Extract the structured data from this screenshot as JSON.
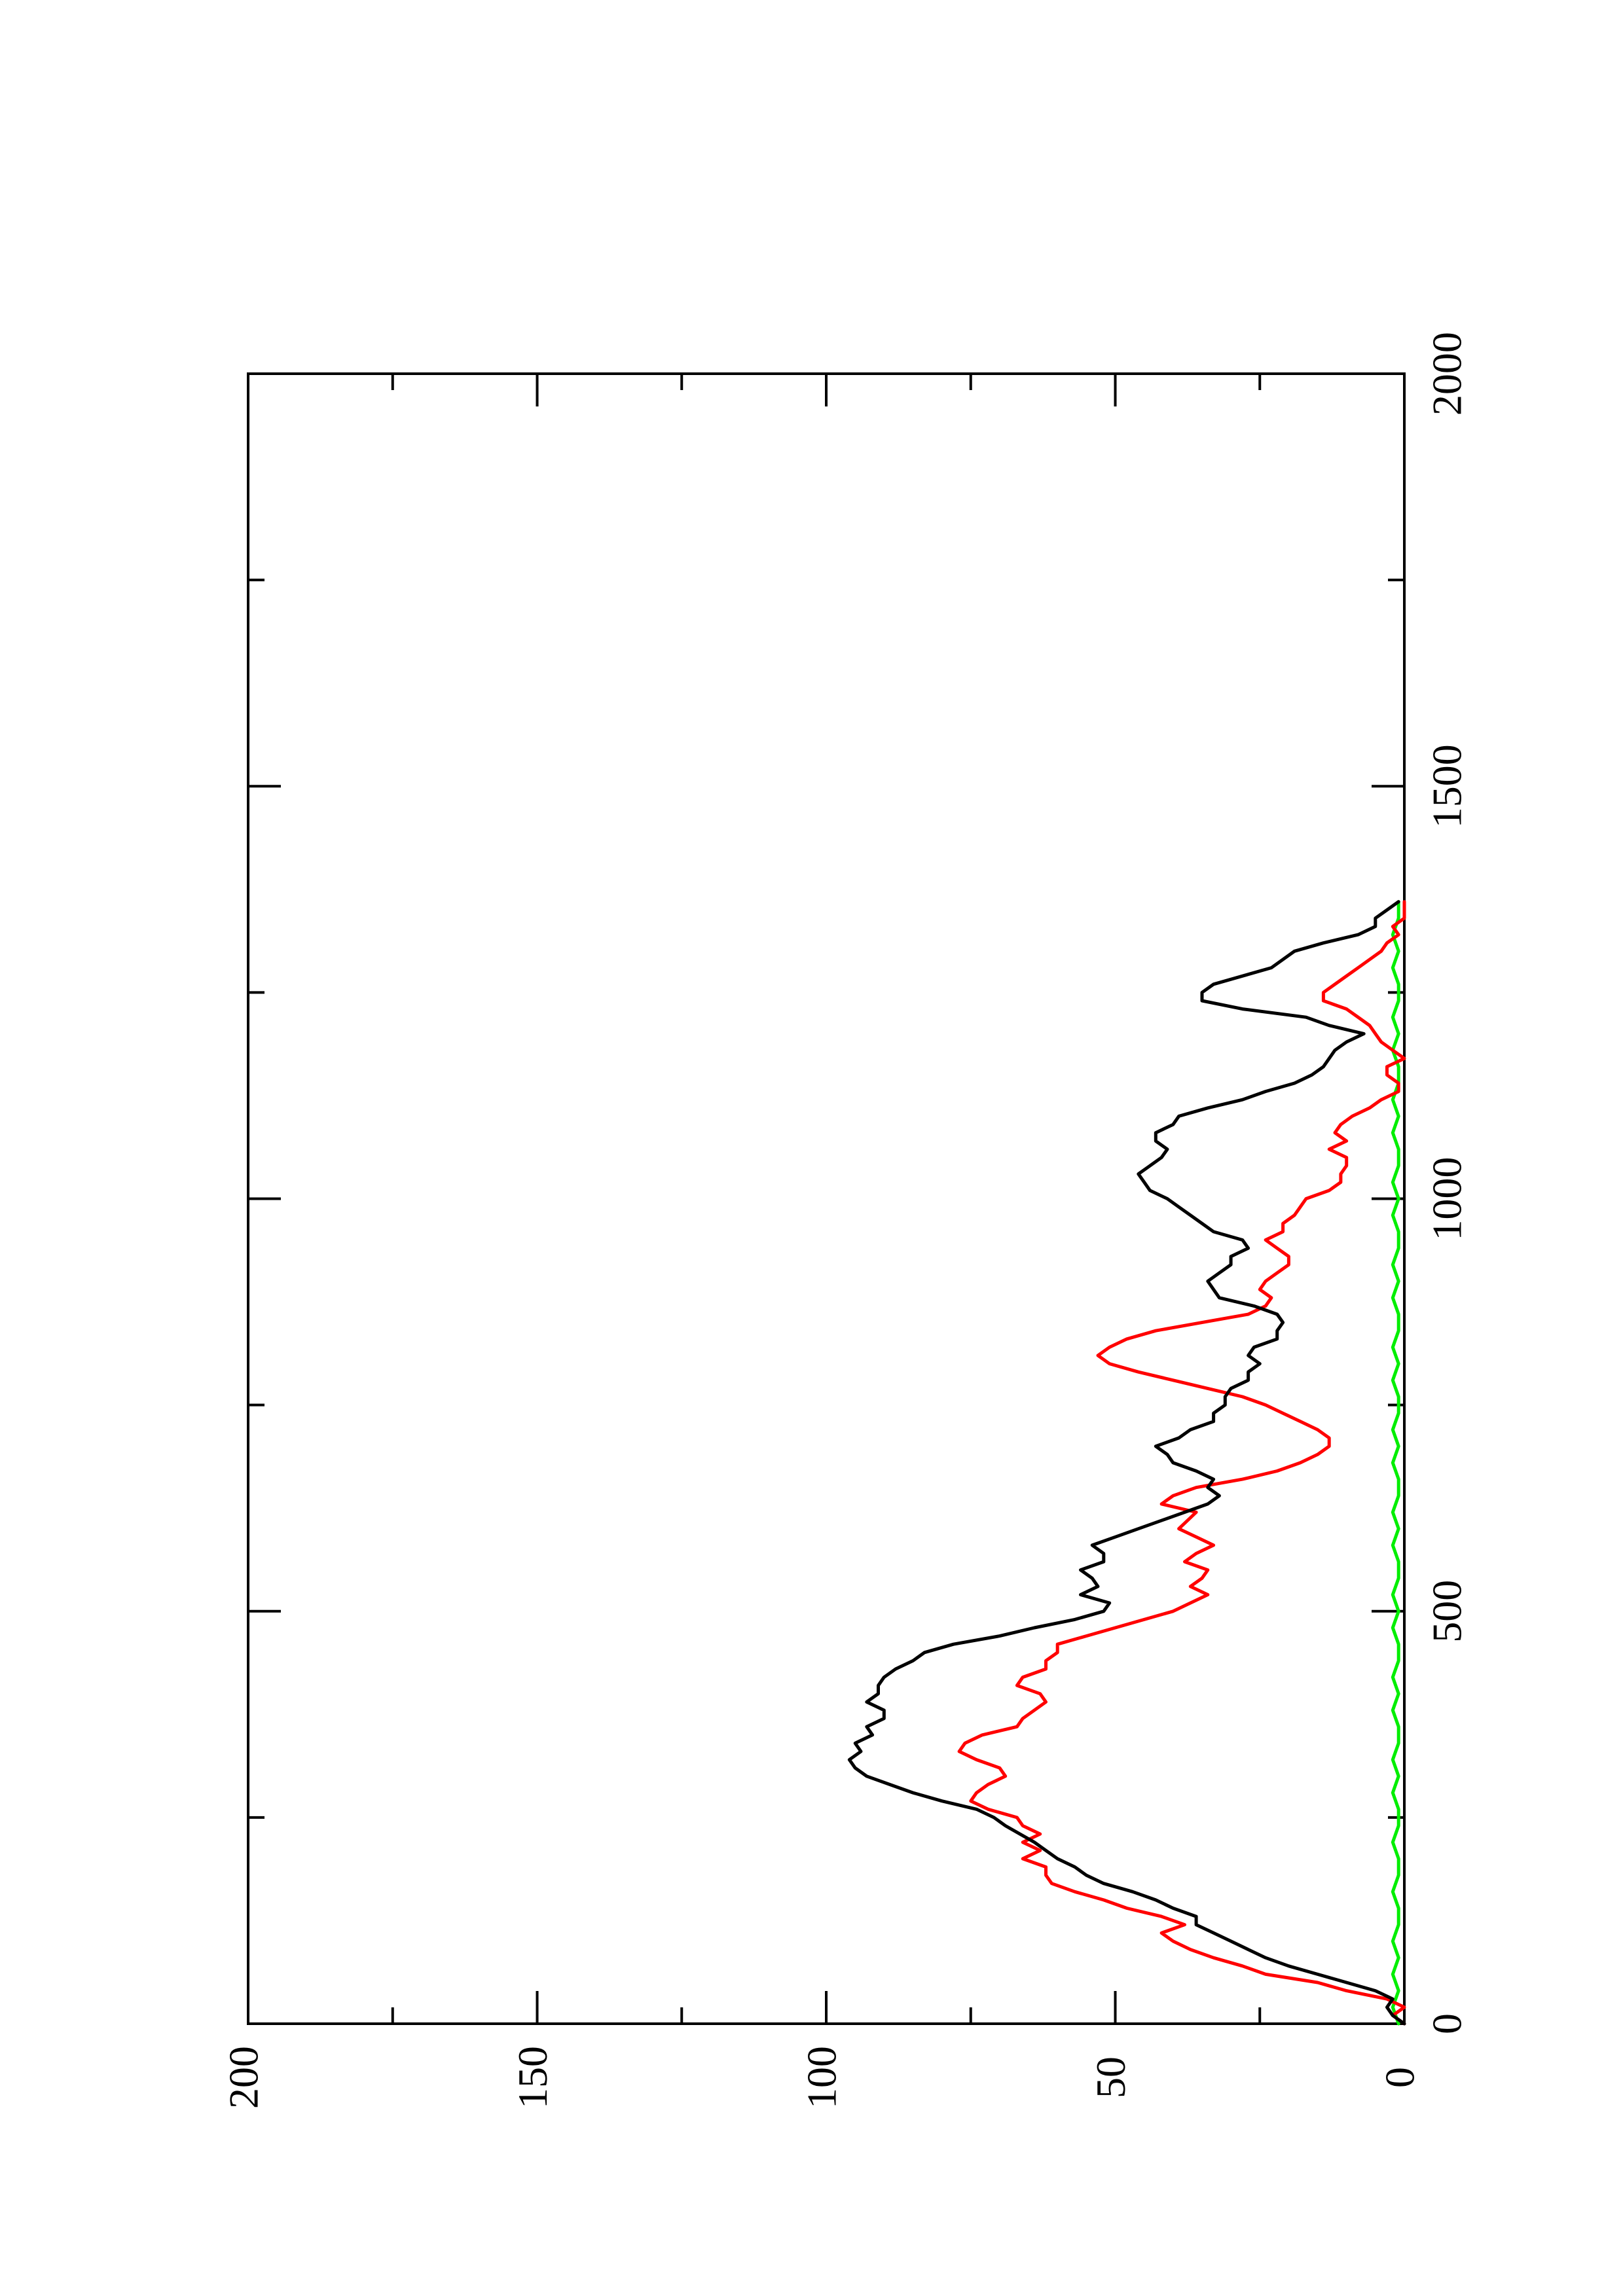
{
  "chart_data": {
    "type": "line",
    "orientation": "rotated 90° counter-clockwise (page in landscape)",
    "title": "",
    "xlabel": "",
    "ylabel": "",
    "xlim": [
      0,
      2000
    ],
    "ylim": [
      0,
      200
    ],
    "x_ticks": [
      "0",
      "500",
      "1000",
      "1500",
      "2000"
    ],
    "y_ticks": [
      "0",
      "50",
      "100",
      "150",
      "200"
    ],
    "grid": false,
    "legend": "none",
    "series": [
      {
        "color": "#000000",
        "points": [
          [
            0,
            0
          ],
          [
            10,
            2
          ],
          [
            20,
            3
          ],
          [
            30,
            2
          ],
          [
            40,
            5
          ],
          [
            50,
            10
          ],
          [
            60,
            15
          ],
          [
            70,
            20
          ],
          [
            80,
            24
          ],
          [
            90,
            27
          ],
          [
            100,
            30
          ],
          [
            110,
            33
          ],
          [
            120,
            36
          ],
          [
            130,
            36
          ],
          [
            140,
            40
          ],
          [
            150,
            43
          ],
          [
            160,
            47
          ],
          [
            170,
            52
          ],
          [
            180,
            55
          ],
          [
            190,
            57
          ],
          [
            200,
            60
          ],
          [
            210,
            62
          ],
          [
            220,
            64
          ],
          [
            240,
            69
          ],
          [
            250,
            71
          ],
          [
            260,
            74
          ],
          [
            270,
            80
          ],
          [
            280,
            85
          ],
          [
            290,
            89
          ],
          [
            300,
            93
          ],
          [
            310,
            95
          ],
          [
            320,
            96
          ],
          [
            330,
            94
          ],
          [
            340,
            95
          ],
          [
            350,
            92
          ],
          [
            360,
            93
          ],
          [
            370,
            90
          ],
          [
            380,
            90
          ],
          [
            390,
            93
          ],
          [
            400,
            91
          ],
          [
            410,
            91
          ],
          [
            420,
            90
          ],
          [
            430,
            88
          ],
          [
            440,
            85
          ],
          [
            450,
            83
          ],
          [
            460,
            78
          ],
          [
            470,
            70
          ],
          [
            480,
            64
          ],
          [
            490,
            57
          ],
          [
            500,
            52
          ],
          [
            510,
            51
          ],
          [
            520,
            56
          ],
          [
            530,
            53
          ],
          [
            540,
            54
          ],
          [
            550,
            56
          ],
          [
            560,
            52
          ],
          [
            570,
            52
          ],
          [
            580,
            54
          ],
          [
            590,
            50
          ],
          [
            600,
            46
          ],
          [
            620,
            38
          ],
          [
            630,
            34
          ],
          [
            640,
            32
          ],
          [
            650,
            34
          ],
          [
            660,
            33
          ],
          [
            670,
            36
          ],
          [
            680,
            40
          ],
          [
            690,
            41
          ],
          [
            700,
            43
          ],
          [
            710,
            39
          ],
          [
            720,
            37
          ],
          [
            730,
            33
          ],
          [
            740,
            33
          ],
          [
            750,
            31
          ],
          [
            760,
            31
          ],
          [
            770,
            30
          ],
          [
            780,
            27
          ],
          [
            790,
            27
          ],
          [
            800,
            25
          ],
          [
            810,
            27
          ],
          [
            820,
            26
          ],
          [
            830,
            22
          ],
          [
            840,
            22
          ],
          [
            850,
            21
          ],
          [
            860,
            22
          ],
          [
            870,
            26
          ],
          [
            880,
            32
          ],
          [
            890,
            33
          ],
          [
            900,
            34
          ],
          [
            910,
            32
          ],
          [
            920,
            30
          ],
          [
            930,
            30
          ],
          [
            940,
            27
          ],
          [
            950,
            28
          ],
          [
            960,
            33
          ],
          [
            970,
            35
          ],
          [
            980,
            37
          ],
          [
            990,
            39
          ],
          [
            1000,
            41
          ],
          [
            1010,
            44
          ],
          [
            1020,
            45
          ],
          [
            1030,
            46
          ],
          [
            1040,
            44
          ],
          [
            1050,
            42
          ],
          [
            1060,
            41
          ],
          [
            1070,
            43
          ],
          [
            1080,
            43
          ],
          [
            1090,
            40
          ],
          [
            1100,
            39
          ],
          [
            1110,
            34
          ],
          [
            1120,
            28
          ],
          [
            1130,
            24
          ],
          [
            1140,
            19
          ],
          [
            1150,
            16
          ],
          [
            1160,
            14
          ],
          [
            1170,
            13
          ],
          [
            1180,
            12
          ],
          [
            1190,
            10
          ],
          [
            1200,
            7
          ],
          [
            1210,
            13
          ],
          [
            1220,
            17
          ],
          [
            1230,
            28
          ],
          [
            1240,
            35
          ],
          [
            1250,
            35
          ],
          [
            1260,
            33
          ],
          [
            1280,
            23
          ],
          [
            1300,
            19
          ],
          [
            1310,
            14
          ],
          [
            1320,
            8
          ],
          [
            1330,
            5
          ],
          [
            1340,
            5
          ],
          [
            1350,
            3
          ],
          [
            1360,
            1
          ]
        ]
      },
      {
        "color": "#ff0000",
        "points": [
          [
            0,
            0
          ],
          [
            10,
            2
          ],
          [
            20,
            0
          ],
          [
            30,
            3
          ],
          [
            40,
            10
          ],
          [
            50,
            15
          ],
          [
            60,
            24
          ],
          [
            70,
            28
          ],
          [
            80,
            33
          ],
          [
            90,
            37
          ],
          [
            100,
            40
          ],
          [
            110,
            42
          ],
          [
            120,
            38
          ],
          [
            130,
            42
          ],
          [
            140,
            48
          ],
          [
            150,
            52
          ],
          [
            160,
            57
          ],
          [
            170,
            61
          ],
          [
            180,
            62
          ],
          [
            190,
            62
          ],
          [
            200,
            66
          ],
          [
            210,
            63
          ],
          [
            220,
            66
          ],
          [
            230,
            63
          ],
          [
            240,
            66
          ],
          [
            250,
            67
          ],
          [
            260,
            72
          ],
          [
            270,
            75
          ],
          [
            280,
            74
          ],
          [
            290,
            72
          ],
          [
            300,
            69
          ],
          [
            310,
            70
          ],
          [
            320,
            74
          ],
          [
            330,
            77
          ],
          [
            340,
            76
          ],
          [
            350,
            73
          ],
          [
            360,
            67
          ],
          [
            370,
            66
          ],
          [
            380,
            64
          ],
          [
            390,
            62
          ],
          [
            400,
            63
          ],
          [
            410,
            67
          ],
          [
            420,
            66
          ],
          [
            430,
            62
          ],
          [
            440,
            62
          ],
          [
            450,
            60
          ],
          [
            460,
            60
          ],
          [
            470,
            55
          ],
          [
            480,
            50
          ],
          [
            490,
            45
          ],
          [
            500,
            40
          ],
          [
            510,
            37
          ],
          [
            520,
            34
          ],
          [
            530,
            37
          ],
          [
            540,
            35
          ],
          [
            550,
            34
          ],
          [
            560,
            38
          ],
          [
            570,
            36
          ],
          [
            580,
            33
          ],
          [
            590,
            36
          ],
          [
            600,
            39
          ],
          [
            620,
            36
          ],
          [
            630,
            42
          ],
          [
            640,
            40
          ],
          [
            650,
            36
          ],
          [
            660,
            28
          ],
          [
            670,
            22
          ],
          [
            680,
            18
          ],
          [
            690,
            15
          ],
          [
            700,
            13
          ],
          [
            710,
            13
          ],
          [
            720,
            15
          ],
          [
            730,
            18
          ],
          [
            740,
            21
          ],
          [
            750,
            24
          ],
          [
            760,
            28
          ],
          [
            770,
            34
          ],
          [
            780,
            40
          ],
          [
            790,
            46
          ],
          [
            800,
            51
          ],
          [
            810,
            53
          ],
          [
            820,
            51
          ],
          [
            830,
            48
          ],
          [
            840,
            43
          ],
          [
            850,
            35
          ],
          [
            860,
            27
          ],
          [
            870,
            24
          ],
          [
            880,
            23
          ],
          [
            890,
            25
          ],
          [
            900,
            24
          ],
          [
            910,
            22
          ],
          [
            920,
            20
          ],
          [
            930,
            20
          ],
          [
            940,
            22
          ],
          [
            950,
            24
          ],
          [
            960,
            21
          ],
          [
            970,
            21
          ],
          [
            980,
            19
          ],
          [
            990,
            18
          ],
          [
            1000,
            17
          ],
          [
            1010,
            13
          ],
          [
            1020,
            11
          ],
          [
            1030,
            11
          ],
          [
            1040,
            10
          ],
          [
            1050,
            10
          ],
          [
            1060,
            13
          ],
          [
            1070,
            10
          ],
          [
            1080,
            12
          ],
          [
            1090,
            11
          ],
          [
            1100,
            9
          ],
          [
            1110,
            6
          ],
          [
            1120,
            4
          ],
          [
            1130,
            1
          ],
          [
            1140,
            1
          ],
          [
            1150,
            3
          ],
          [
            1160,
            3
          ],
          [
            1170,
            0
          ],
          [
            1180,
            2
          ],
          [
            1190,
            4
          ],
          [
            1200,
            5
          ],
          [
            1210,
            6
          ],
          [
            1220,
            8
          ],
          [
            1230,
            10
          ],
          [
            1240,
            14
          ],
          [
            1250,
            14
          ],
          [
            1260,
            12
          ],
          [
            1270,
            10
          ],
          [
            1280,
            8
          ],
          [
            1290,
            6
          ],
          [
            1300,
            4
          ],
          [
            1310,
            3
          ],
          [
            1320,
            1
          ],
          [
            1330,
            2
          ],
          [
            1340,
            0
          ],
          [
            1360,
            0
          ]
        ]
      },
      {
        "color": "#00ee00",
        "points": [
          [
            0,
            1
          ],
          [
            20,
            2
          ],
          [
            40,
            1
          ],
          [
            60,
            2
          ],
          [
            80,
            1
          ],
          [
            100,
            2
          ],
          [
            120,
            1
          ],
          [
            140,
            1
          ],
          [
            160,
            2
          ],
          [
            180,
            1
          ],
          [
            200,
            1
          ],
          [
            220,
            2
          ],
          [
            240,
            1
          ],
          [
            260,
            1
          ],
          [
            280,
            2
          ],
          [
            300,
            1
          ],
          [
            320,
            2
          ],
          [
            340,
            1
          ],
          [
            360,
            1
          ],
          [
            380,
            2
          ],
          [
            400,
            1
          ],
          [
            420,
            2
          ],
          [
            440,
            1
          ],
          [
            460,
            1
          ],
          [
            480,
            2
          ],
          [
            500,
            1
          ],
          [
            520,
            2
          ],
          [
            540,
            1
          ],
          [
            560,
            1
          ],
          [
            580,
            2
          ],
          [
            600,
            1
          ],
          [
            620,
            2
          ],
          [
            640,
            1
          ],
          [
            660,
            1
          ],
          [
            680,
            2
          ],
          [
            700,
            1
          ],
          [
            720,
            2
          ],
          [
            740,
            1
          ],
          [
            760,
            1
          ],
          [
            780,
            2
          ],
          [
            800,
            1
          ],
          [
            820,
            2
          ],
          [
            840,
            1
          ],
          [
            860,
            1
          ],
          [
            880,
            2
          ],
          [
            900,
            1
          ],
          [
            920,
            2
          ],
          [
            940,
            1
          ],
          [
            960,
            1
          ],
          [
            980,
            2
          ],
          [
            1000,
            1
          ],
          [
            1020,
            2
          ],
          [
            1040,
            1
          ],
          [
            1060,
            1
          ],
          [
            1080,
            2
          ],
          [
            1100,
            1
          ],
          [
            1120,
            2
          ],
          [
            1140,
            1
          ],
          [
            1160,
            1
          ],
          [
            1180,
            2
          ],
          [
            1200,
            1
          ],
          [
            1220,
            2
          ],
          [
            1240,
            1
          ],
          [
            1260,
            1
          ],
          [
            1280,
            2
          ],
          [
            1300,
            1
          ],
          [
            1320,
            2
          ],
          [
            1340,
            1
          ],
          [
            1360,
            1
          ]
        ]
      }
    ]
  }
}
